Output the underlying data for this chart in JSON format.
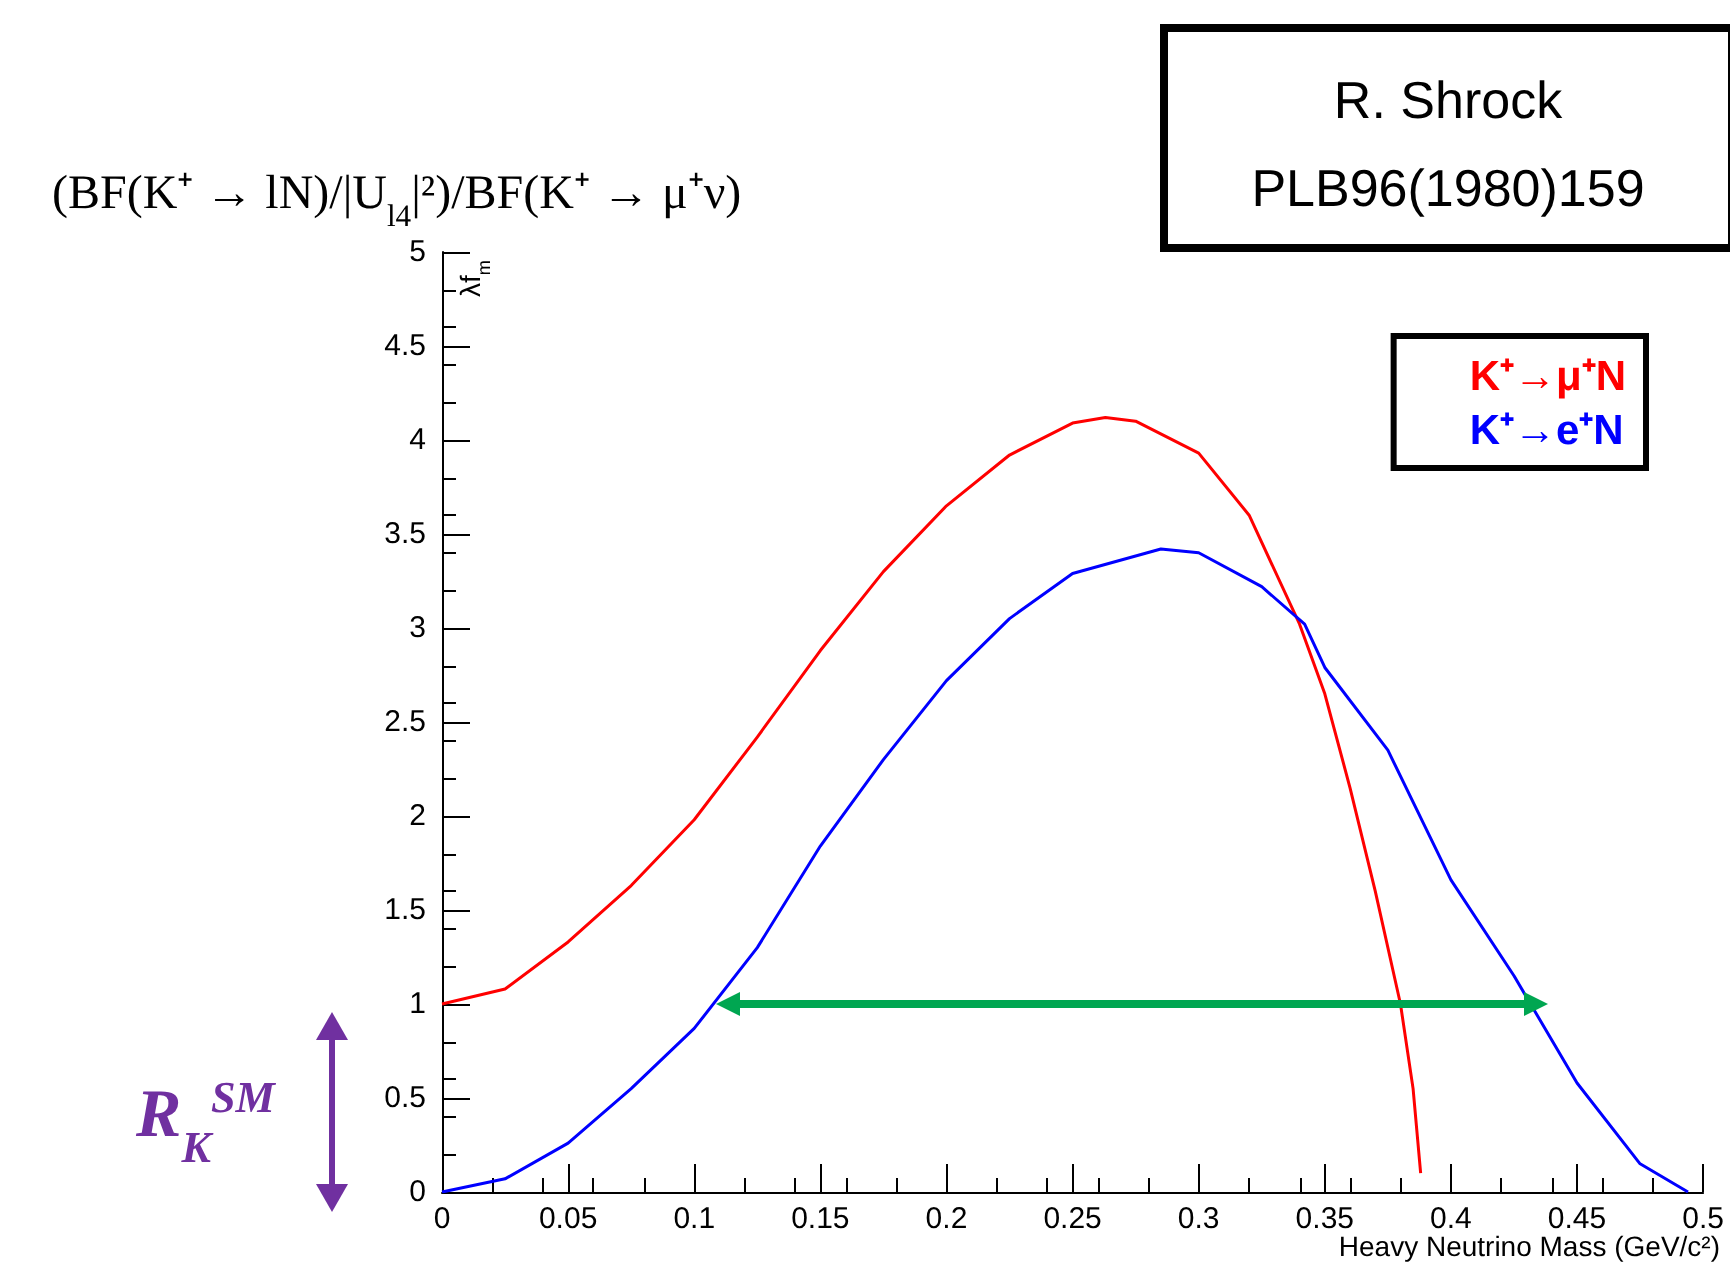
{
  "chart_data": {
    "type": "line",
    "title": "(BF(K⁺ → lN)/|U$_{l4}$|²)/BF(K⁺ → μ⁺ν)",
    "xlabel": "Heavy Neutrino Mass (GeV/c²)",
    "ylabel": "λf$_{m}$",
    "annotations": [
      "R. Shrock",
      "PLB96(1980)159",
      "R$_{K}$$^{SM}$"
    ],
    "series": [
      {
        "name": "K⁺→μ⁺N",
        "color": "#ff0000",
        "x": [
          0,
          0.025,
          0.05,
          0.075,
          0.1,
          0.125,
          0.15,
          0.175,
          0.2,
          0.225,
          0.25,
          0.263,
          0.275,
          0.3,
          0.32,
          0.34,
          0.35,
          0.36,
          0.37,
          0.38,
          0.385,
          0.388
        ],
        "values": [
          1.0,
          1.08,
          1.33,
          1.63,
          1.98,
          2.42,
          2.88,
          3.3,
          3.65,
          3.92,
          4.09,
          4.12,
          4.1,
          3.93,
          3.6,
          3.02,
          2.65,
          2.15,
          1.6,
          1.0,
          0.55,
          0.1
        ]
      },
      {
        "name": "K⁺→e⁺N",
        "color": "#0000ff",
        "x": [
          0,
          0.025,
          0.05,
          0.075,
          0.1,
          0.125,
          0.15,
          0.175,
          0.2,
          0.225,
          0.25,
          0.285,
          0.3,
          0.325,
          0.342,
          0.35,
          0.375,
          0.4,
          0.425,
          0.45,
          0.475,
          0.494
        ],
        "values": [
          0,
          0.07,
          0.26,
          0.55,
          0.87,
          1.3,
          1.84,
          2.3,
          2.72,
          3.05,
          3.29,
          3.42,
          3.4,
          3.22,
          3.02,
          2.79,
          2.35,
          1.66,
          1.15,
          0.58,
          0.15,
          0
        ]
      }
    ],
    "xlim": [
      0,
      0.5
    ],
    "xticks": [
      0,
      0.05,
      0.1,
      0.15,
      0.2,
      0.25,
      0.3,
      0.35,
      0.4,
      0.45,
      0.5
    ],
    "ylim": [
      0,
      5
    ],
    "yticks": [
      0,
      0.5,
      1,
      1.5,
      2,
      2.5,
      3,
      3.5,
      4,
      4.5,
      5
    ],
    "grid": false,
    "legend": "top right",
    "marker": "none",
    "line_style": "solid"
  }
}
